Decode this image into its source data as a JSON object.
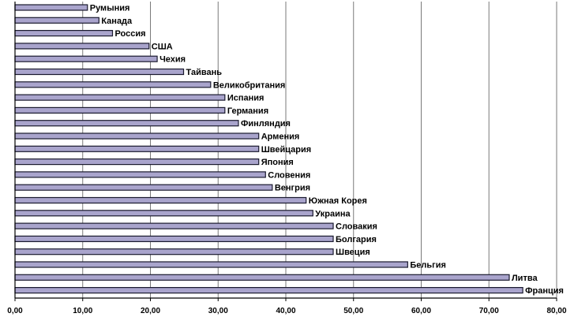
{
  "chart_data": {
    "type": "bar",
    "orientation": "horizontal",
    "title": "",
    "xlabel": "",
    "ylabel": "",
    "xlim": [
      0,
      80
    ],
    "grid": true,
    "legend": "none",
    "bar_color": "#a9a4cc",
    "bar_edge_color": "#1a1a2e",
    "categories": [
      "Румыния",
      "Канада",
      "Россия",
      "США",
      "Чехия",
      "Тайвань",
      "Великобритания",
      "Испания",
      "Германия",
      "Финляндия",
      "Армения",
      "Швейцария",
      "Япония",
      "Словения",
      "Венгрия",
      "Южная Корея",
      "Украина",
      "Словакия",
      "Болгария",
      "Швеция",
      "Бельгия",
      "Литва",
      "Франция"
    ],
    "values": [
      10.7,
      12.4,
      14.4,
      19.8,
      21.0,
      24.9,
      28.9,
      31.0,
      31.0,
      33.0,
      36.0,
      36.0,
      36.0,
      37.0,
      38.0,
      43.0,
      44.0,
      47.0,
      47.0,
      47.0,
      58.0,
      73.0,
      75.0
    ],
    "x_ticks": [
      "0,00",
      "10,00",
      "20,00",
      "30,00",
      "40,00",
      "50,00",
      "60,00",
      "70,00",
      "80,00"
    ]
  }
}
